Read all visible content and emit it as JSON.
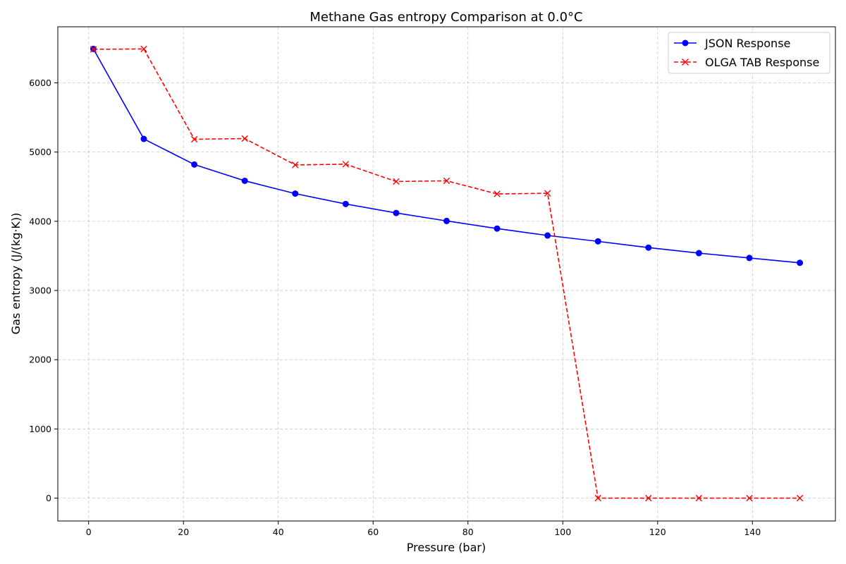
{
  "chart_data": {
    "type": "line",
    "title": "Methane Gas entropy Comparison at 0.0°C",
    "xlabel": "Pressure (bar)",
    "ylabel": "Gas entropy (J/(kg·K))",
    "xlim": [
      -6.5,
      157.5
    ],
    "ylim": [
      -330,
      6810
    ],
    "xticks": [
      0,
      20,
      40,
      60,
      80,
      100,
      120,
      140
    ],
    "yticks": [
      0,
      1000,
      2000,
      3000,
      4000,
      5000,
      6000
    ],
    "grid": true,
    "legend_position": "top-right",
    "x": [
      1.0,
      11.64,
      22.29,
      32.93,
      43.57,
      54.21,
      64.86,
      75.5,
      86.14,
      96.79,
      107.43,
      118.07,
      128.71,
      139.36,
      150.0
    ],
    "series": [
      {
        "name": "JSON Response",
        "color": "#0000ff",
        "line_style": "solid",
        "marker": "circle",
        "values": [
          6490,
          5190,
          4820,
          4585,
          4400,
          4250,
          4120,
          4005,
          3895,
          3795,
          3710,
          3620,
          3540,
          3470,
          3400
        ]
      },
      {
        "name": "OLGA TAB Response",
        "color": "#ff0000",
        "line_style": "dashed",
        "marker": "x",
        "values": [
          6485,
          6490,
          5185,
          5195,
          4815,
          4825,
          4575,
          4585,
          4395,
          4405,
          0,
          0,
          0,
          0,
          0
        ]
      }
    ]
  }
}
